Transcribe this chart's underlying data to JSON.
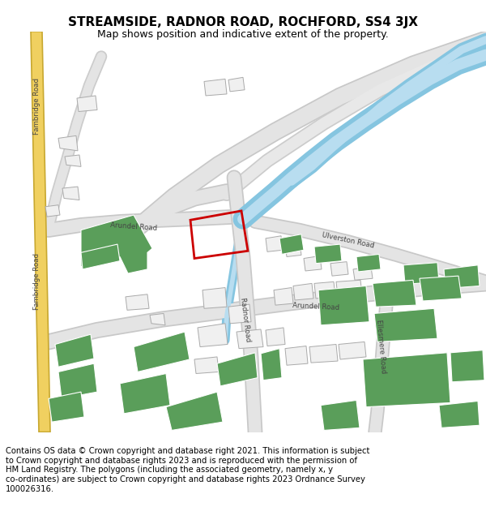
{
  "title": "STREAMSIDE, RADNOR ROAD, ROCHFORD, SS4 3JX",
  "subtitle": "Map shows position and indicative extent of the property.",
  "footer": "Contains OS data © Crown copyright and database right 2021. This information is subject\nto Crown copyright and database rights 2023 and is reproduced with the permission of\nHM Land Registry. The polygons (including the associated geometry, namely x, y\nco-ordinates) are subject to Crown copyright and database rights 2023 Ordnance Survey\n100026316.",
  "bg_color": "#ffffff",
  "map_bg": "#ffffff",
  "yellow_road_color": "#f0d060",
  "yellow_road_outline": "#c8a830",
  "green_building_color": "#5a9e5a",
  "light_blue_water": "#a8d4e6",
  "red_outline": "#cc0000",
  "title_fontsize": 11,
  "subtitle_fontsize": 9,
  "footer_fontsize": 7.2,
  "road_gray": "#d8d8d8",
  "road_outline": "#c0c0c0"
}
